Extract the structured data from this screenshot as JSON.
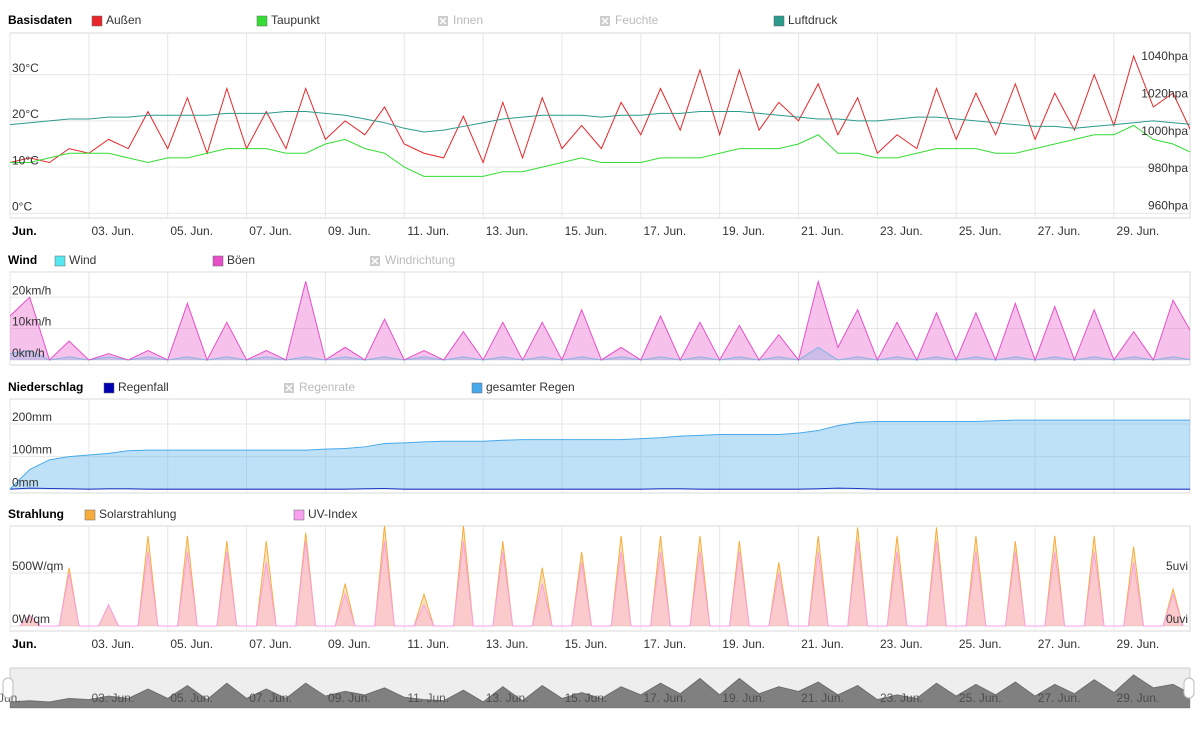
{
  "chart_data": [
    {
      "type": "line",
      "title": "Basisdaten",
      "x": [
        1,
        1.5,
        2,
        2.5,
        3,
        3.5,
        4,
        4.5,
        5,
        5.5,
        6,
        6.5,
        7,
        7.5,
        8,
        8.5,
        9,
        9.5,
        10,
        10.5,
        11,
        11.5,
        12,
        12.5,
        13,
        13.5,
        14,
        14.5,
        15,
        15.5,
        16,
        16.5,
        17,
        17.5,
        18,
        18.5,
        19,
        19.5,
        20,
        20.5,
        21,
        21.5,
        22,
        22.5,
        23,
        23.5,
        24,
        24.5,
        25,
        25.5,
        26,
        26.5,
        27,
        27.5,
        28,
        28.5,
        29,
        29.5,
        30,
        30.5,
        31
      ],
      "series": [
        {
          "name": "Außen",
          "color": "#e8262a",
          "values": [
            11,
            12,
            11,
            14,
            13,
            16,
            14,
            22,
            14,
            25,
            13,
            27,
            14,
            22,
            14,
            27,
            16,
            20,
            17,
            23,
            15,
            13,
            12,
            21,
            11,
            24,
            12,
            25,
            14,
            19,
            14,
            24,
            17,
            27,
            18,
            31,
            17,
            31,
            18,
            24,
            20,
            28,
            17,
            25,
            13,
            17,
            14,
            27,
            16,
            26,
            17,
            28,
            16,
            26,
            18,
            30,
            19,
            34,
            23,
            26,
            17
          ]
        },
        {
          "name": "Taupunkt",
          "color": "#33dd33",
          "values": [
            11,
            11,
            12,
            13,
            13,
            13,
            12,
            11,
            12,
            12,
            13,
            14,
            14,
            14,
            13,
            13,
            15,
            16,
            14,
            13,
            10,
            8,
            8,
            8,
            8,
            9,
            9,
            10,
            11,
            12,
            11,
            11,
            11,
            12,
            12,
            12,
            13,
            14,
            14,
            14,
            15,
            17,
            13,
            13,
            12,
            12,
            13,
            14,
            14,
            14,
            13,
            13,
            14,
            15,
            16,
            17,
            17,
            19,
            16,
            15,
            13
          ]
        },
        {
          "name": "Luftdruck",
          "color": "#2c9a8c",
          "axis": "y2",
          "values": [
            1007,
            1008,
            1009,
            1010,
            1010,
            1011,
            1011,
            1012,
            1012,
            1012,
            1012,
            1013,
            1013,
            1013,
            1014,
            1014,
            1013,
            1012,
            1010,
            1008,
            1005,
            1003,
            1004,
            1006,
            1008,
            1010,
            1011,
            1012,
            1012,
            1012,
            1011,
            1012,
            1012,
            1013,
            1013,
            1014,
            1014,
            1014,
            1013,
            1012,
            1011,
            1010,
            1010,
            1009,
            1009,
            1010,
            1011,
            1011,
            1010,
            1009,
            1008,
            1007,
            1006,
            1006,
            1005,
            1006,
            1007,
            1008,
            1009,
            1008,
            1007
          ]
        }
      ],
      "hidden_series": [
        "Innen",
        "Feuchte"
      ],
      "xlim": [
        1,
        30.93
      ],
      "xticks": [
        {
          "value": 1,
          "label": "Jun."
        },
        {
          "value": 3,
          "label": "03. Jun."
        },
        {
          "value": 5,
          "label": "05. Jun."
        },
        {
          "value": 7,
          "label": "07. Jun."
        },
        {
          "value": 9,
          "label": "09. Jun."
        },
        {
          "value": 11,
          "label": "11. Jun."
        },
        {
          "value": 13,
          "label": "13. Jun."
        },
        {
          "value": 15,
          "label": "15. Jun."
        },
        {
          "value": 17,
          "label": "17. Jun."
        },
        {
          "value": 19,
          "label": "19. Jun."
        },
        {
          "value": 21,
          "label": "21. Jun."
        },
        {
          "value": 23,
          "label": "23. Jun."
        },
        {
          "value": 25,
          "label": "25. Jun."
        },
        {
          "value": 27,
          "label": "27. Jun."
        },
        {
          "value": 29,
          "label": "29. Jun."
        }
      ],
      "ylim": [
        -1,
        39
      ],
      "yticks": [
        {
          "value": 0,
          "label": "0°C"
        },
        {
          "value": 10,
          "label": "10°C"
        },
        {
          "value": 20,
          "label": "20°C"
        },
        {
          "value": 30,
          "label": "30°C"
        }
      ],
      "y2lim": [
        957,
        1056
      ],
      "y2ticks": [
        {
          "value": 960,
          "label": "960hpa"
        },
        {
          "value": 980,
          "label": "980hpa"
        },
        {
          "value": 1000,
          "label": "1000hpa"
        },
        {
          "value": 1020,
          "label": "1020hpa"
        },
        {
          "value": 1040,
          "label": "1040hpa"
        }
      ],
      "grid": true
    },
    {
      "type": "line",
      "title": "Wind",
      "x": [
        1,
        1.5,
        2,
        2.5,
        3,
        3.5,
        4,
        4.5,
        5,
        5.5,
        6,
        6.5,
        7,
        7.5,
        8,
        8.5,
        9,
        9.5,
        10,
        10.5,
        11,
        11.5,
        12,
        12.5,
        13,
        13.5,
        14,
        14.5,
        15,
        15.5,
        16,
        16.5,
        17,
        17.5,
        18,
        18.5,
        19,
        19.5,
        20,
        20.5,
        21,
        21.5,
        22,
        22.5,
        23,
        23.5,
        24,
        24.5,
        25,
        25.5,
        26,
        26.5,
        27,
        27.5,
        28,
        28.5,
        29,
        29.5,
        30,
        30.5,
        31
      ],
      "series": [
        {
          "name": "Wind",
          "color": "#55e8f0",
          "fill": true,
          "values": [
            2,
            3,
            0,
            1,
            0,
            1,
            0,
            1,
            0,
            1,
            0,
            1,
            0,
            1,
            0,
            1,
            0,
            1,
            0,
            1,
            0,
            1,
            0,
            1,
            0,
            1,
            0,
            1,
            0,
            1,
            0,
            1,
            0,
            1,
            0,
            1,
            0,
            1,
            0,
            1,
            0,
            4,
            0,
            1,
            0,
            1,
            0,
            1,
            0,
            1,
            0,
            1,
            0,
            1,
            0,
            1,
            0,
            1,
            0,
            1,
            0
          ]
        },
        {
          "name": "Böen",
          "color": "#e64fc8",
          "fill": true,
          "values": [
            14,
            20,
            0,
            6,
            0,
            2,
            0,
            3,
            0,
            18,
            0,
            12,
            0,
            3,
            0,
            25,
            0,
            4,
            0,
            13,
            0,
            3,
            0,
            9,
            0,
            12,
            0,
            12,
            0,
            16,
            0,
            4,
            0,
            14,
            0,
            12,
            0,
            11,
            0,
            8,
            0,
            25,
            4,
            16,
            0,
            12,
            0,
            15,
            0,
            15,
            0,
            18,
            0,
            17,
            0,
            16,
            0,
            9,
            0,
            19,
            8
          ]
        }
      ],
      "hidden_series": [
        "Windrichtung"
      ],
      "xlim": [
        1,
        30.93
      ],
      "ylim": [
        -1.6,
        28
      ],
      "yticks": [
        {
          "value": 0,
          "label": "0km/h"
        },
        {
          "value": 10,
          "label": "10km/h"
        },
        {
          "value": 20,
          "label": "20km/h"
        }
      ],
      "grid": true
    },
    {
      "type": "line",
      "title": "Niederschlag",
      "x": [
        1,
        1.5,
        2,
        2.5,
        3,
        3.5,
        4,
        4.5,
        5,
        5.5,
        6,
        6.5,
        7,
        7.5,
        8,
        8.5,
        9,
        9.5,
        10,
        10.5,
        11,
        11.5,
        12,
        12.5,
        13,
        13.5,
        14,
        14.5,
        15,
        15.5,
        16,
        16.5,
        17,
        17.5,
        18,
        18.5,
        19,
        19.5,
        20,
        20.5,
        21,
        21.5,
        22,
        22.5,
        23,
        23.5,
        24,
        24.5,
        25,
        25.5,
        26,
        26.5,
        27,
        27.5,
        28,
        28.5,
        29,
        29.5,
        30,
        30.5,
        31
      ],
      "series": [
        {
          "name": "Regenfall",
          "color": "#0000b0",
          "values": [
            0,
            3,
            2,
            1,
            0,
            1,
            1,
            0,
            0,
            0,
            0,
            0,
            0,
            0,
            0,
            0,
            0,
            0,
            1,
            2,
            0,
            0,
            0,
            0,
            0,
            0,
            0,
            0,
            0,
            0,
            0,
            0,
            0,
            1,
            1,
            0,
            0,
            0,
            0,
            0,
            0,
            1,
            3,
            2,
            0,
            0,
            0,
            0,
            0,
            0,
            0,
            0,
            0,
            0,
            0,
            0,
            0,
            0,
            0,
            0,
            0
          ]
        },
        {
          "name": "gesamter Regen",
          "color": "#49a9ea",
          "fill": true,
          "values": [
            0,
            60,
            90,
            100,
            105,
            110,
            118,
            120,
            120,
            120,
            120,
            120,
            120,
            120,
            120,
            120,
            123,
            125,
            130,
            140,
            142,
            145,
            147,
            147,
            147,
            150,
            152,
            152,
            152,
            152,
            152,
            152,
            155,
            158,
            163,
            165,
            168,
            168,
            168,
            168,
            172,
            180,
            195,
            205,
            208,
            208,
            208,
            208,
            208,
            208,
            210,
            212,
            212,
            212,
            212,
            212,
            212,
            212,
            212,
            212,
            212
          ]
        }
      ],
      "hidden_series": [
        "Regenrate"
      ],
      "xlim": [
        1,
        30.93
      ],
      "ylim": [
        -12,
        277
      ],
      "yticks": [
        {
          "value": 0,
          "label": "0mm"
        },
        {
          "value": 100,
          "label": "100mm"
        },
        {
          "value": 200,
          "label": "200mm"
        }
      ],
      "grid": true
    },
    {
      "type": "line",
      "title": "Strahlung",
      "x": [
        1.25,
        1.5,
        1.75,
        2.25,
        2.5,
        2.75,
        3.25,
        3.5,
        3.75,
        4.25,
        4.5,
        4.75,
        5.25,
        5.5,
        5.75,
        6.25,
        6.5,
        6.75,
        7.25,
        7.5,
        7.75,
        8.25,
        8.5,
        8.75,
        9.25,
        9.5,
        9.75,
        10.25,
        10.5,
        10.75,
        11.25,
        11.5,
        11.75,
        12.25,
        12.5,
        12.75,
        13.25,
        13.5,
        13.75,
        14.25,
        14.5,
        14.75,
        15.25,
        15.5,
        15.75,
        16.25,
        16.5,
        16.75,
        17.25,
        17.5,
        17.75,
        18.25,
        18.5,
        18.75,
        19.25,
        19.5,
        19.75,
        20.25,
        20.5,
        20.75,
        21.25,
        21.5,
        21.75,
        22.25,
        22.5,
        22.75,
        23.25,
        23.5,
        23.75,
        24.25,
        24.5,
        24.75,
        25.25,
        25.5,
        25.75,
        26.25,
        26.5,
        26.75,
        27.25,
        27.5,
        27.75,
        28.25,
        28.5,
        28.75,
        29.25,
        29.5,
        29.75,
        30.25,
        30.5,
        30.75
      ],
      "series": [
        {
          "name": "Solarstrahlung",
          "color": "#f6ad3c",
          "fill": true,
          "values": [
            0,
            100,
            0,
            0,
            550,
            0,
            0,
            200,
            0,
            0,
            850,
            0,
            0,
            850,
            0,
            0,
            800,
            0,
            0,
            800,
            0,
            0,
            880,
            0,
            0,
            400,
            0,
            0,
            950,
            0,
            0,
            300,
            0,
            0,
            950,
            0,
            0,
            800,
            0,
            0,
            550,
            0,
            0,
            700,
            0,
            0,
            850,
            0,
            0,
            850,
            0,
            0,
            850,
            0,
            0,
            800,
            0,
            0,
            600,
            0,
            0,
            850,
            0,
            0,
            930,
            0,
            0,
            850,
            0,
            0,
            930,
            0,
            0,
            850,
            0,
            0,
            800,
            0,
            0,
            850,
            0,
            0,
            850,
            0,
            0,
            750,
            0,
            0,
            350,
            0
          ]
        },
        {
          "name": "UV-Index",
          "color": "#f8a0ee",
          "fill": true,
          "axis": "y2",
          "values": [
            0,
            1,
            0,
            0,
            5,
            0,
            0,
            2,
            0,
            0,
            7,
            0,
            0,
            7,
            0,
            0,
            7,
            0,
            0,
            6,
            0,
            0,
            8,
            0,
            0,
            3,
            0,
            0,
            8,
            0,
            0,
            2,
            0,
            0,
            8,
            0,
            0,
            7,
            0,
            0,
            4,
            0,
            0,
            6,
            0,
            0,
            7,
            0,
            0,
            7,
            0,
            0,
            7,
            0,
            0,
            7,
            0,
            0,
            5,
            0,
            0,
            7,
            0,
            0,
            8,
            0,
            0,
            7,
            0,
            0,
            8,
            0,
            0,
            7,
            0,
            0,
            7,
            0,
            0,
            7,
            0,
            0,
            7,
            0,
            0,
            6,
            0,
            0,
            3,
            0
          ]
        }
      ],
      "xlim": [
        1,
        30.93
      ],
      "xticks": [
        {
          "value": 1,
          "label": "Jun."
        },
        {
          "value": 3,
          "label": "03. Jun."
        },
        {
          "value": 5,
          "label": "05. Jun."
        },
        {
          "value": 7,
          "label": "07. Jun."
        },
        {
          "value": 9,
          "label": "09. Jun."
        },
        {
          "value": 11,
          "label": "11. Jun."
        },
        {
          "value": 13,
          "label": "13. Jun."
        },
        {
          "value": 15,
          "label": "15. Jun."
        },
        {
          "value": 17,
          "label": "17. Jun."
        },
        {
          "value": 19,
          "label": "19. Jun."
        },
        {
          "value": 21,
          "label": "21. Jun."
        },
        {
          "value": 23,
          "label": "23. Jun."
        },
        {
          "value": 25,
          "label": "25. Jun."
        },
        {
          "value": 27,
          "label": "27. Jun."
        },
        {
          "value": 29,
          "label": "29. Jun."
        }
      ],
      "ylim": [
        -47,
        943
      ],
      "yticks": [
        {
          "value": 0,
          "label": "0W/qm"
        },
        {
          "value": 500,
          "label": "500W/qm"
        }
      ],
      "y2lim": [
        -0.47,
        9.43
      ],
      "y2ticks": [
        {
          "value": 0,
          "label": "0uvi"
        },
        {
          "value": 5,
          "label": "5uvi"
        }
      ],
      "grid": true
    }
  ]
}
